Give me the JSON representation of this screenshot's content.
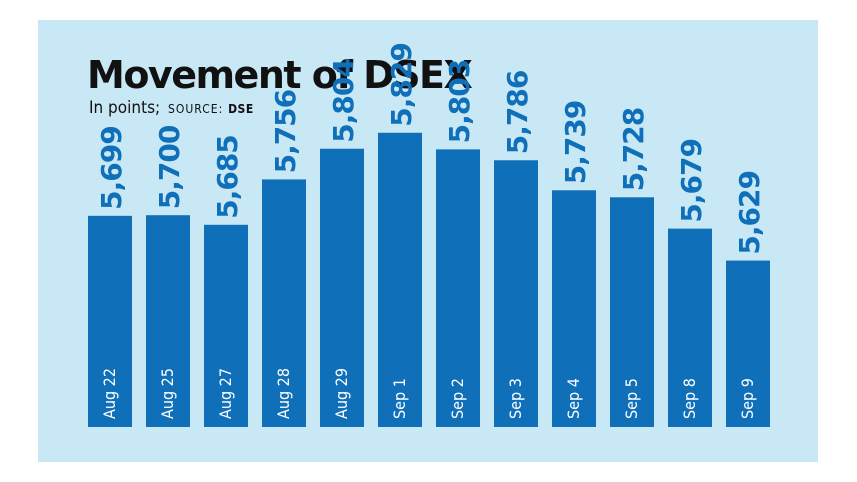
{
  "title": "Movement of DSEX",
  "subtitle": {
    "units": "In points;",
    "source_label": "SOURCE:",
    "source_value": "DSE"
  },
  "colors": {
    "panel_background": "#c9e8f6",
    "bar": "#0f6fb8",
    "value_label": "#0f6fb8",
    "category_label": "#ffffff",
    "title": "#111111"
  },
  "chart_data": {
    "type": "bar",
    "title": "Movement of DSEX",
    "subtitle": "In points; SOURCE: DSE",
    "xlabel": "",
    "ylabel": "",
    "grid": false,
    "legend": "none",
    "ylim": [
      5400,
      5900
    ],
    "categories": [
      "Aug 22",
      "Aug 25",
      "Aug 27",
      "Aug 28",
      "Aug 29",
      "Sep 1",
      "Sep 2",
      "Sep 3",
      "Sep 4",
      "Sep 5",
      "Sep 8",
      "Sep 9"
    ],
    "values": [
      5699,
      5700,
      5685,
      5756,
      5804,
      5829,
      5803,
      5786,
      5739,
      5728,
      5679,
      5629
    ],
    "value_labels": [
      "5,699",
      "5,700",
      "5,685",
      "5,756",
      "5,804",
      "5,829",
      "5,803",
      "5,786",
      "5,739",
      "5,728",
      "5,679",
      "5,629"
    ]
  }
}
